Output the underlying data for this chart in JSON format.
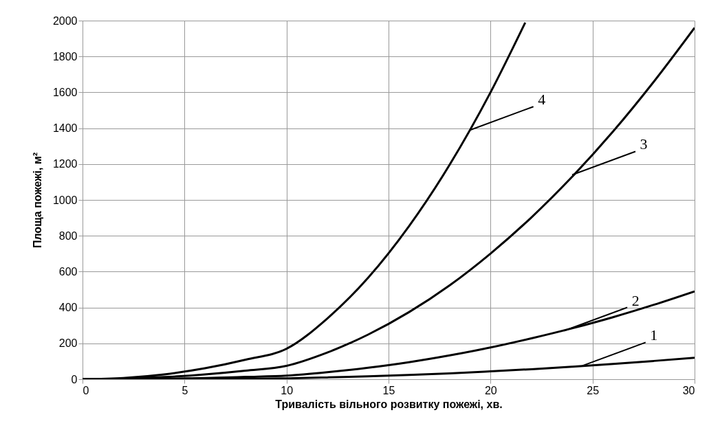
{
  "chart_data": {
    "type": "line",
    "xlabel": "Тривалість вільного розвитку пожежі, хв.",
    "ylabel": "Площа пожежі,  м²",
    "x": [
      0,
      2,
      4,
      6,
      8,
      10,
      12,
      14,
      16,
      18,
      20,
      22,
      24,
      26,
      28,
      30
    ],
    "series": [
      {
        "color": "#000000",
        "values": [
          0,
          0,
          1,
          2,
          3,
          5,
          10,
          16,
          24,
          33,
          44,
          56,
          70,
          85,
          102,
          120
        ]
      },
      {
        "color": "#000000",
        "values": [
          0,
          1,
          3,
          7,
          13,
          20,
          39,
          64,
          95,
          133,
          177,
          228,
          284,
          346,
          415,
          490
        ]
      },
      {
        "color": "#000000",
        "values": [
          0,
          3,
          12,
          27,
          48,
          75,
          149,
          249,
          374,
          524,
          701,
          902,
          1129,
          1381,
          1659,
          1960
        ]
      },
      {
        "color": "#000000",
        "x": [
          0,
          2,
          4,
          6,
          8,
          10,
          12,
          14,
          16,
          18,
          20,
          21.7
        ],
        "values": [
          0,
          7,
          27,
          61,
          109,
          170,
          339,
          566,
          853,
          1197,
          1600,
          1989
        ]
      }
    ],
    "annotations": [
      {
        "text": "1",
        "x": 24.5,
        "y": 75
      },
      {
        "text": "2",
        "x": 23.6,
        "y": 270
      },
      {
        "text": "3",
        "x": 24,
        "y": 1140
      },
      {
        "text": "4",
        "x": 19,
        "y": 1390
      }
    ],
    "xlim": [
      0,
      30
    ],
    "ylim": [
      0,
      2000
    ],
    "xticks": [
      0,
      5,
      10,
      15,
      20,
      25,
      30
    ],
    "yticks": [
      0,
      200,
      400,
      600,
      800,
      1000,
      1200,
      1400,
      1600,
      1800,
      2000
    ],
    "grid": true,
    "marker": "none",
    "line_style": "solid"
  }
}
